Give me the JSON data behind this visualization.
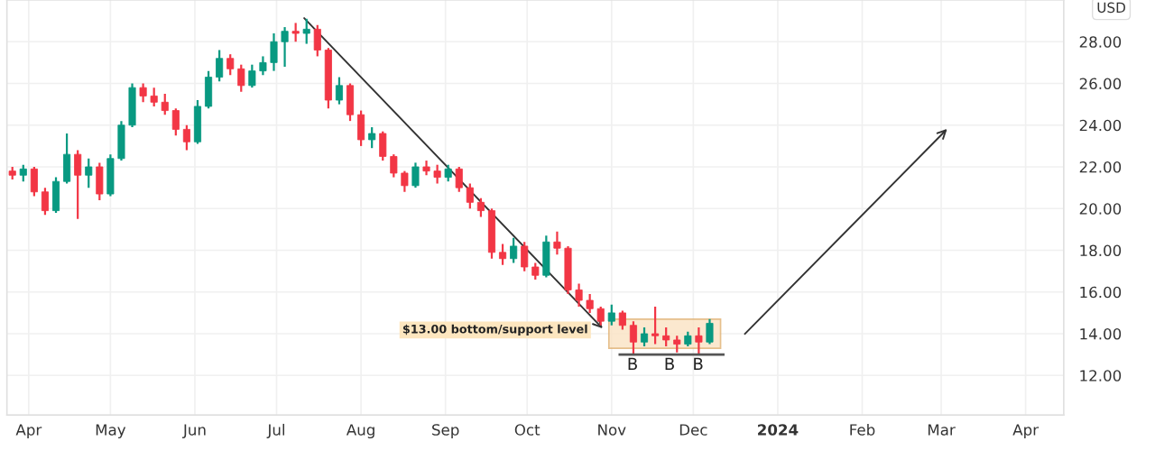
{
  "chart_data": {
    "type": "candlestick",
    "x": [
      "2023-03-26",
      "2023-03-30",
      "2023-04-03",
      "2023-04-07",
      "2023-04-11",
      "2023-04-15",
      "2023-04-19",
      "2023-04-23",
      "2023-04-27",
      "2023-05-01",
      "2023-05-05",
      "2023-05-09",
      "2023-05-13",
      "2023-05-17",
      "2023-05-21",
      "2023-05-25",
      "2023-05-29",
      "2023-06-02",
      "2023-06-06",
      "2023-06-10",
      "2023-06-14",
      "2023-06-18",
      "2023-06-22",
      "2023-06-26",
      "2023-06-30",
      "2023-07-04",
      "2023-07-08",
      "2023-07-12",
      "2023-07-16",
      "2023-07-20",
      "2023-07-24",
      "2023-07-28",
      "2023-08-01",
      "2023-08-05",
      "2023-08-09",
      "2023-08-13",
      "2023-08-17",
      "2023-08-21",
      "2023-08-25",
      "2023-08-29",
      "2023-09-02",
      "2023-09-06",
      "2023-09-10",
      "2023-09-14",
      "2023-09-18",
      "2023-09-22",
      "2023-09-26",
      "2023-09-30",
      "2023-10-04",
      "2023-10-08",
      "2023-10-12",
      "2023-10-16",
      "2023-10-20",
      "2023-10-24",
      "2023-10-28",
      "2023-11-01",
      "2023-11-05",
      "2023-11-09",
      "2023-11-13",
      "2023-11-17",
      "2023-11-21",
      "2023-11-25",
      "2023-11-29",
      "2023-12-03",
      "2023-12-07"
    ],
    "ohlc": [
      [
        21.8,
        22.0,
        21.4,
        21.6
      ],
      [
        21.6,
        22.1,
        21.3,
        21.9
      ],
      [
        21.9,
        22.0,
        20.6,
        20.8
      ],
      [
        20.8,
        21.0,
        19.7,
        19.9
      ],
      [
        19.9,
        21.5,
        19.8,
        21.3
      ],
      [
        21.3,
        23.6,
        21.2,
        22.6
      ],
      [
        22.6,
        22.8,
        19.5,
        21.6
      ],
      [
        21.6,
        22.4,
        21.0,
        22.0
      ],
      [
        22.0,
        22.2,
        20.4,
        20.7
      ],
      [
        20.7,
        22.6,
        20.6,
        22.4
      ],
      [
        22.4,
        24.2,
        22.3,
        24.0
      ],
      [
        24.0,
        26.0,
        23.9,
        25.8
      ],
      [
        25.8,
        26.0,
        25.1,
        25.4
      ],
      [
        25.4,
        25.8,
        24.9,
        25.1
      ],
      [
        25.1,
        25.5,
        24.5,
        24.7
      ],
      [
        24.7,
        24.8,
        23.5,
        23.8
      ],
      [
        23.8,
        24.0,
        22.8,
        23.2
      ],
      [
        23.2,
        25.2,
        23.1,
        24.9
      ],
      [
        24.9,
        26.6,
        24.8,
        26.3
      ],
      [
        26.3,
        27.6,
        26.1,
        27.2
      ],
      [
        27.2,
        27.4,
        26.4,
        26.7
      ],
      [
        26.7,
        26.9,
        25.6,
        25.9
      ],
      [
        25.9,
        26.9,
        25.8,
        26.6
      ],
      [
        26.6,
        27.3,
        26.4,
        27.0
      ],
      [
        27.0,
        28.4,
        26.6,
        28.0
      ],
      [
        28.0,
        28.7,
        26.8,
        28.5
      ],
      [
        28.5,
        28.9,
        28.0,
        28.4
      ],
      [
        28.4,
        29.1,
        27.9,
        28.6
      ],
      [
        28.6,
        28.8,
        27.3,
        27.6
      ],
      [
        27.6,
        27.7,
        24.8,
        25.2
      ],
      [
        25.2,
        26.3,
        25.0,
        25.9
      ],
      [
        25.9,
        26.0,
        24.2,
        24.5
      ],
      [
        24.5,
        24.7,
        23.0,
        23.3
      ],
      [
        23.3,
        23.9,
        22.9,
        23.6
      ],
      [
        23.6,
        23.7,
        22.3,
        22.5
      ],
      [
        22.5,
        22.6,
        21.5,
        21.7
      ],
      [
        21.7,
        21.8,
        20.8,
        21.1
      ],
      [
        21.1,
        22.2,
        21.0,
        22.0
      ],
      [
        22.0,
        22.3,
        21.6,
        21.8
      ],
      [
        21.8,
        22.1,
        21.2,
        21.5
      ],
      [
        21.5,
        22.1,
        21.3,
        21.9
      ],
      [
        21.9,
        22.0,
        20.8,
        21.0
      ],
      [
        21.0,
        21.2,
        20.0,
        20.3
      ],
      [
        20.3,
        20.5,
        19.6,
        19.9
      ],
      [
        19.9,
        20.0,
        17.6,
        17.9
      ],
      [
        17.9,
        18.3,
        17.3,
        17.6
      ],
      [
        17.6,
        18.6,
        17.4,
        18.2
      ],
      [
        18.2,
        18.4,
        17.0,
        17.2
      ],
      [
        17.2,
        17.4,
        16.6,
        16.8
      ],
      [
        16.8,
        18.7,
        16.7,
        18.4
      ],
      [
        18.4,
        18.9,
        17.8,
        18.1
      ],
      [
        18.1,
        18.2,
        15.9,
        16.1
      ],
      [
        16.1,
        16.4,
        15.3,
        15.6
      ],
      [
        15.6,
        15.9,
        15.0,
        15.2
      ],
      [
        15.2,
        15.3,
        14.4,
        14.6
      ],
      [
        14.6,
        15.4,
        14.4,
        15.0
      ],
      [
        15.0,
        15.1,
        14.2,
        14.4
      ],
      [
        14.4,
        14.6,
        13.0,
        13.6
      ],
      [
        13.6,
        14.3,
        13.4,
        14.0
      ],
      [
        14.0,
        15.3,
        13.5,
        13.9
      ],
      [
        13.9,
        14.3,
        13.4,
        13.7
      ],
      [
        13.7,
        13.9,
        13.1,
        13.5
      ],
      [
        13.5,
        14.1,
        13.4,
        13.9
      ],
      [
        13.9,
        14.3,
        13.0,
        13.6
      ],
      [
        13.6,
        14.7,
        13.5,
        14.5
      ]
    ],
    "colors": [
      "#f23645",
      "#089981",
      "#f23645",
      "#f23645",
      "#089981",
      "#089981",
      "#f23645",
      "#089981",
      "#f23645",
      "#089981",
      "#089981",
      "#089981",
      "#f23645",
      "#f23645",
      "#f23645",
      "#f23645",
      "#f23645",
      "#089981",
      "#089981",
      "#089981",
      "#f23645",
      "#f23645",
      "#089981",
      "#089981",
      "#089981",
      "#089981",
      "#f23645",
      "#089981",
      "#f23645",
      "#f23645",
      "#089981",
      "#f23645",
      "#f23645",
      "#089981",
      "#f23645",
      "#f23645",
      "#f23645",
      "#089981",
      "#f23645",
      "#f23645",
      "#089981",
      "#f23645",
      "#f23645",
      "#f23645",
      "#f23645",
      "#f23645",
      "#089981",
      "#f23645",
      "#f23645",
      "#089981",
      "#f23645",
      "#f23645",
      "#f23645",
      "#f23645",
      "#f23645",
      "#089981",
      "#f23645",
      "#f23645",
      "#089981",
      "#f23645",
      "#f23645",
      "#f23645",
      "#089981",
      "#f23645",
      "#089981"
    ],
    "ylabel": "USD",
    "xlim": [
      "2023-03-24",
      "2024-04-15"
    ],
    "xticks": [
      {
        "value": "2023-04-01",
        "label": "Apr"
      },
      {
        "value": "2023-05-01",
        "label": "May"
      },
      {
        "value": "2023-06-01",
        "label": "Jun"
      },
      {
        "value": "2023-07-01",
        "label": "Jul"
      },
      {
        "value": "2023-08-01",
        "label": "Aug"
      },
      {
        "value": "2023-09-01",
        "label": "Sep"
      },
      {
        "value": "2023-10-01",
        "label": "Oct"
      },
      {
        "value": "2023-11-01",
        "label": "Nov"
      },
      {
        "value": "2023-12-01",
        "label": "Dec"
      },
      {
        "value": "2024-01-01",
        "label": "2024"
      },
      {
        "value": "2024-02-01",
        "label": "Feb"
      },
      {
        "value": "2024-03-01",
        "label": "Mar"
      },
      {
        "value": "2024-04-01",
        "label": "Apr"
      }
    ],
    "ylim": [
      10.1,
      30
    ],
    "yticks": [
      {
        "value": 12,
        "label": "12.00"
      },
      {
        "value": 14,
        "label": "14.00"
      },
      {
        "value": 16,
        "label": "16.00"
      },
      {
        "value": 18,
        "label": "18.00"
      },
      {
        "value": 20,
        "label": "20.00"
      },
      {
        "value": 22,
        "label": "22.00"
      },
      {
        "value": 24,
        "label": "24.00"
      },
      {
        "value": 26,
        "label": "26.00"
      },
      {
        "value": 28,
        "label": "28.00"
      }
    ],
    "grid": true,
    "annotations": [
      "$13.00 bottom/support level",
      "B",
      "B",
      "B"
    ]
  }
}
